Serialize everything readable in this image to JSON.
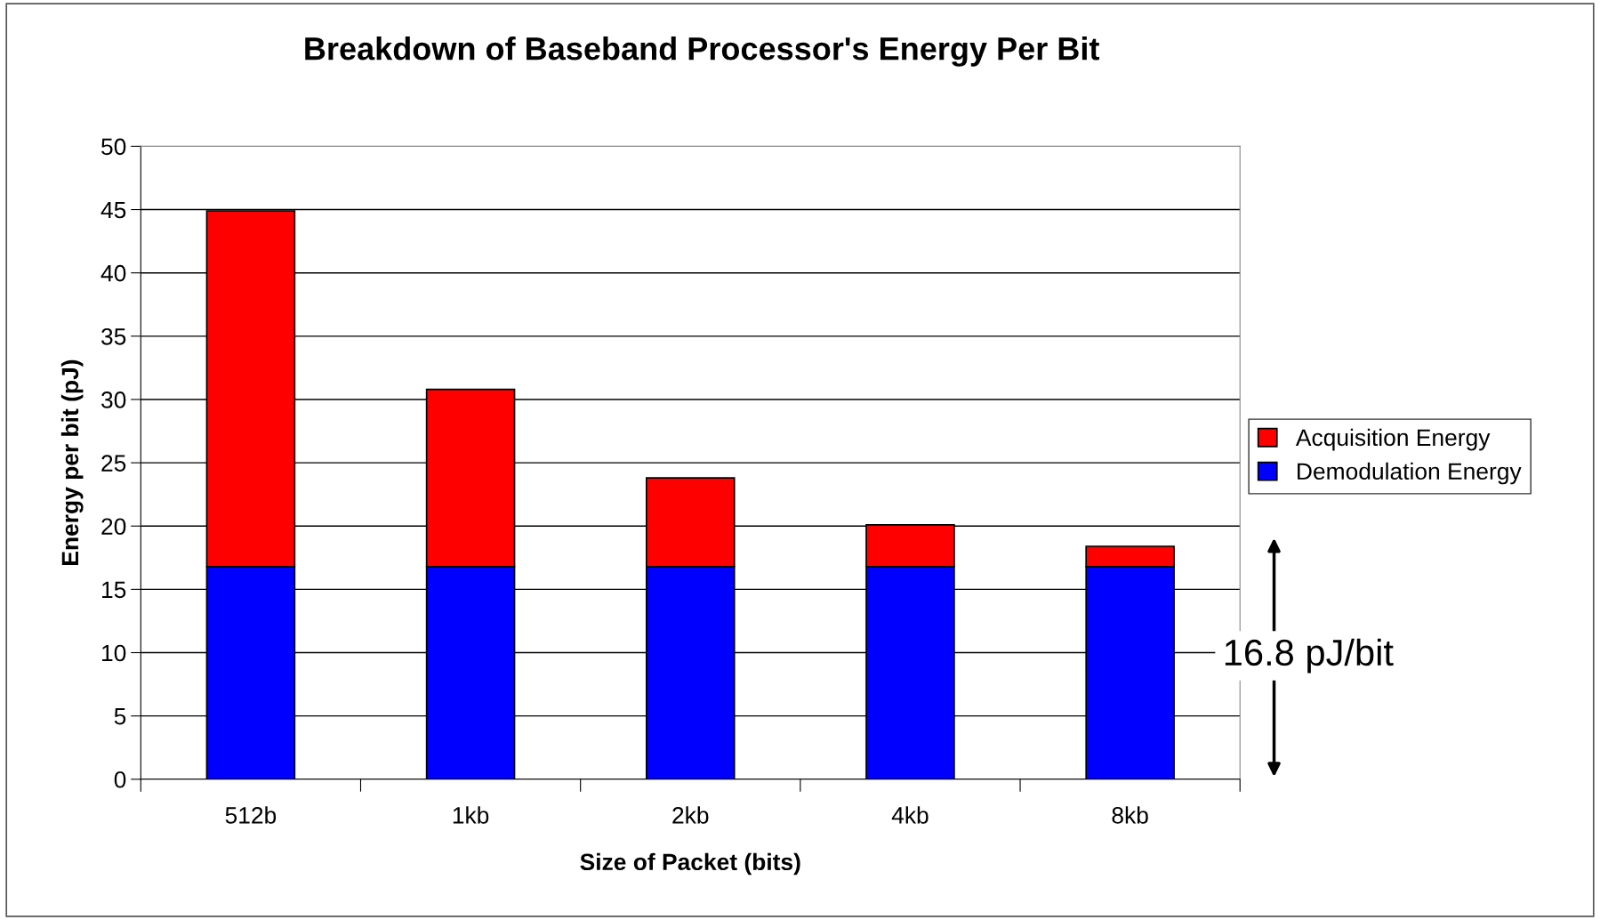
{
  "chart_data": {
    "type": "bar",
    "title": "Breakdown of Baseband Processor's Energy Per Bit",
    "xlabel": "Size of Packet (bits)",
    "ylabel": "Energy per bit (pJ)",
    "categories": [
      "512b",
      "1kb",
      "2kb",
      "4kb",
      "8kb"
    ],
    "series": [
      {
        "name": "Demodulation Energy",
        "color": "#0000ff",
        "values": [
          16.8,
          16.8,
          16.8,
          16.8,
          16.8
        ]
      },
      {
        "name": "Acquisition Energy",
        "color": "#ff0000",
        "values": [
          28.1,
          14.0,
          7.0,
          3.3,
          1.6
        ]
      }
    ],
    "stacked": true,
    "ylim": [
      0,
      50
    ],
    "yticks": [
      0,
      5,
      10,
      15,
      20,
      25,
      30,
      35,
      40,
      45,
      50
    ],
    "grid": "y",
    "legend": "right",
    "annotations": [
      "16.8 pJ/bit"
    ]
  }
}
